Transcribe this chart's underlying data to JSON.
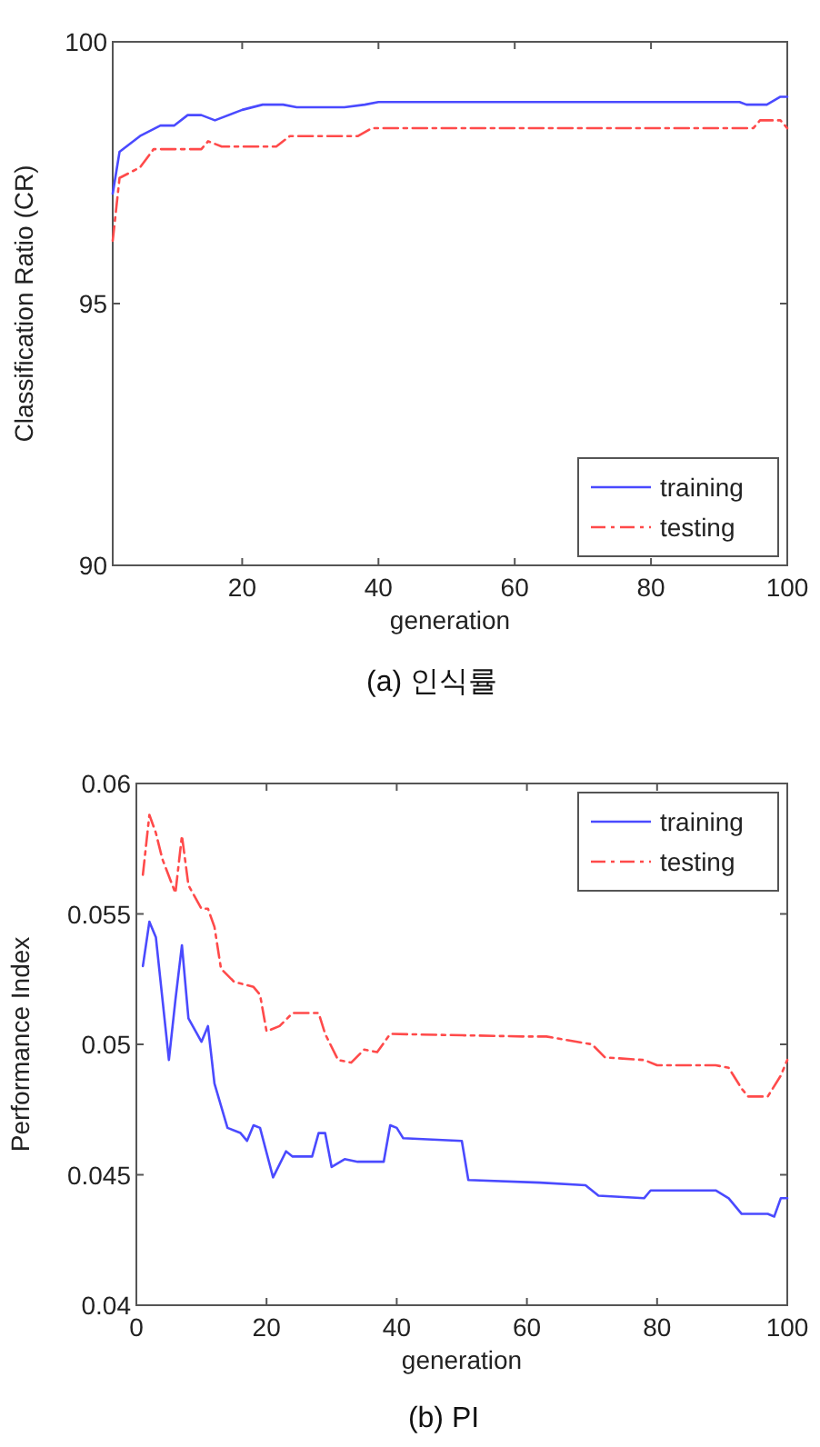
{
  "chart_data": [
    {
      "type": "line",
      "title": "(a) 인식률",
      "xlabel": "generation",
      "ylabel": "Classification Ratio (CR)",
      "xlim": [
        1,
        100
      ],
      "xticks": [
        20,
        40,
        60,
        80,
        100
      ],
      "ylim": [
        90,
        100
      ],
      "yticks": [
        90,
        95,
        100
      ],
      "grid": false,
      "legend": "bottom right",
      "series": [
        {
          "name": "training",
          "color": "#4a4aff",
          "line_style": "solid",
          "x": [
            1,
            2,
            5,
            8,
            10,
            12,
            14,
            16,
            20,
            23,
            26,
            28,
            35,
            38,
            40,
            93,
            94,
            97,
            99,
            100
          ],
          "values": [
            97.1,
            97.9,
            98.2,
            98.4,
            98.4,
            98.6,
            98.6,
            98.5,
            98.7,
            98.8,
            98.8,
            98.75,
            98.75,
            98.8,
            98.85,
            98.85,
            98.8,
            98.8,
            98.95,
            98.95
          ]
        },
        {
          "name": "testing",
          "color": "#ff4a4a",
          "line_style": "dashdot",
          "x": [
            1,
            2,
            5,
            7,
            10,
            14,
            15,
            17,
            25,
            27,
            37,
            39,
            95,
            96,
            99,
            100
          ],
          "values": [
            96.2,
            97.4,
            97.6,
            97.95,
            97.95,
            97.95,
            98.1,
            98.0,
            98.0,
            98.2,
            98.2,
            98.35,
            98.35,
            98.5,
            98.5,
            98.35
          ]
        }
      ]
    },
    {
      "type": "line",
      "title": "(b) PI",
      "xlabel": "generation",
      "ylabel": "Performance Index",
      "xlim": [
        0,
        100
      ],
      "xticks": [
        0,
        20,
        40,
        60,
        80,
        100
      ],
      "ylim": [
        0.04,
        0.06
      ],
      "yticks": [
        0.04,
        0.045,
        0.05,
        0.055,
        0.06
      ],
      "grid": false,
      "legend": "top right",
      "series": [
        {
          "name": "training",
          "color": "#4a4aff",
          "line_style": "solid",
          "x": [
            1,
            2,
            3,
            5,
            6,
            7,
            8,
            10,
            11,
            12,
            14,
            16,
            17,
            18,
            19,
            21,
            23,
            24,
            27,
            28,
            29,
            30,
            32,
            34,
            38,
            39,
            40,
            41,
            50,
            51,
            62,
            69,
            71,
            78,
            79,
            89,
            91,
            93,
            97,
            98,
            99,
            100
          ],
          "values": [
            0.053,
            0.0547,
            0.0541,
            0.0494,
            0.0517,
            0.0538,
            0.051,
            0.0501,
            0.0507,
            0.0485,
            0.0468,
            0.0466,
            0.0463,
            0.0469,
            0.0468,
            0.0449,
            0.0459,
            0.0457,
            0.0457,
            0.0466,
            0.0466,
            0.0453,
            0.0456,
            0.0455,
            0.0455,
            0.0469,
            0.0468,
            0.0464,
            0.0463,
            0.0448,
            0.0447,
            0.0446,
            0.0442,
            0.0441,
            0.0444,
            0.0444,
            0.0441,
            0.0435,
            0.0435,
            0.0434,
            0.0441,
            0.0441
          ]
        },
        {
          "name": "testing",
          "color": "#ff4a4a",
          "line_style": "dashdot",
          "x": [
            1,
            2,
            3,
            4,
            6,
            7,
            8,
            10,
            11,
            12,
            13,
            15,
            18,
            19,
            20,
            22,
            24,
            28,
            29,
            31,
            33,
            35,
            37,
            39,
            60,
            63,
            70,
            72,
            78,
            80,
            89,
            91,
            93,
            94,
            97,
            99,
            100
          ],
          "values": [
            0.0565,
            0.0588,
            0.0581,
            0.0571,
            0.0558,
            0.058,
            0.0561,
            0.0552,
            0.0552,
            0.0545,
            0.0529,
            0.0524,
            0.0522,
            0.0519,
            0.0505,
            0.0507,
            0.0512,
            0.0512,
            0.0504,
            0.0494,
            0.0493,
            0.0498,
            0.0497,
            0.0504,
            0.0503,
            0.0503,
            0.05,
            0.0495,
            0.0494,
            0.0492,
            0.0492,
            0.0491,
            0.0483,
            0.048,
            0.048,
            0.0488,
            0.0494
          ]
        }
      ]
    }
  ]
}
